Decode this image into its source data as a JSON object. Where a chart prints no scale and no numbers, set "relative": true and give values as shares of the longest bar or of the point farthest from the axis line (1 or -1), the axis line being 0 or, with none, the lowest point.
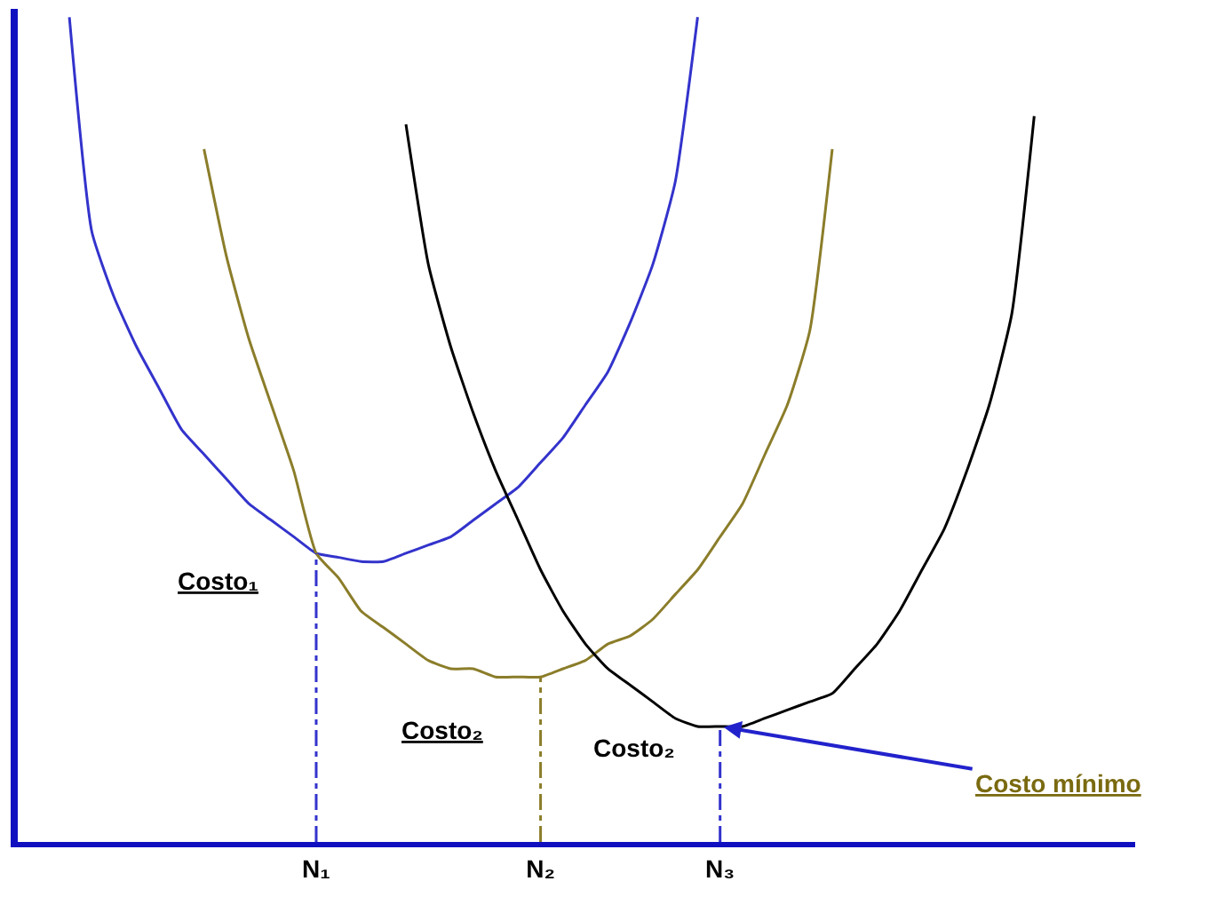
{
  "chart_data": {
    "type": "line",
    "relative": true,
    "categories": [
      null,
      null,
      null,
      null,
      null,
      null,
      null,
      null,
      null,
      null,
      null,
      null,
      null,
      "N₁",
      null,
      null,
      null,
      null,
      null,
      null,
      null,
      null,
      null,
      "N₂",
      null,
      null,
      null,
      null,
      null,
      null,
      null,
      "N₃",
      null,
      null,
      null,
      null,
      null,
      null,
      null,
      null,
      null,
      null,
      null,
      null,
      null,
      null,
      null,
      null,
      null,
      null
    ],
    "series": [
      {
        "color": "#3333cc",
        "values": [
          null,
          null,
          1,
          0.74,
          0.66,
          0.6,
          0.55,
          0.5,
          0.47,
          0.44,
          0.41,
          0.39,
          0.37,
          0.35,
          0.345,
          0.34,
          0.34,
          0.35,
          0.36,
          0.37,
          0.39,
          0.41,
          0.43,
          0.46,
          0.49,
          0.53,
          0.57,
          0.63,
          0.7,
          0.8,
          1,
          null,
          null,
          null,
          null,
          null,
          null,
          null,
          null,
          null,
          null,
          null,
          null,
          null,
          null,
          null,
          null,
          null,
          null,
          null
        ]
      },
      {
        "color": "#8b7d2a",
        "values": [
          null,
          null,
          null,
          null,
          null,
          null,
          null,
          null,
          0.84,
          0.71,
          0.61,
          0.53,
          0.45,
          0.35,
          0.32,
          0.28,
          0.26,
          0.24,
          0.22,
          0.21,
          0.21,
          0.2,
          0.2,
          0.2,
          0.21,
          0.22,
          0.24,
          0.25,
          0.27,
          0.3,
          0.33,
          0.37,
          0.41,
          0.47,
          0.53,
          0.62,
          0.84,
          null,
          null,
          null,
          null,
          null,
          null,
          null,
          null,
          null,
          null,
          null,
          null,
          null
        ]
      },
      {
        "color": "#000000",
        "values": [
          null,
          null,
          null,
          null,
          null,
          null,
          null,
          null,
          null,
          null,
          null,
          null,
          null,
          null,
          null,
          null,
          null,
          0.87,
          0.7,
          0.6,
          0.52,
          0.45,
          0.39,
          0.33,
          0.28,
          0.24,
          0.21,
          0.19,
          0.17,
          0.15,
          0.14,
          0.14,
          0.14,
          0.15,
          0.16,
          0.17,
          0.18,
          0.21,
          0.24,
          0.28,
          0.33,
          0.38,
          0.45,
          0.53,
          0.64,
          0.88,
          null,
          null,
          null,
          null
        ]
      }
    ],
    "ref_lines": [
      {
        "axis": "x",
        "value": "N₁",
        "color": "#3333cc",
        "line_style": "dashed"
      },
      {
        "axis": "x",
        "value": "N₂",
        "color": "#8b7d2a",
        "line_style": "dashed"
      },
      {
        "axis": "x",
        "value": "N₃",
        "color": "#3333cc",
        "line_style": "dashed"
      }
    ],
    "annotations": [
      {
        "text": "Costo₁",
        "x": "N₁",
        "y": 0.35
      },
      {
        "text": "Costo₂",
        "x": "N₂",
        "y": 0.2
      },
      {
        "text": "Costo₂",
        "x": "N₃",
        "y": 0.14
      },
      {
        "text": "Costo mínimo",
        "x": "N₃",
        "y": 0.14
      }
    ],
    "marker": "none",
    "line_style": "solid"
  }
}
